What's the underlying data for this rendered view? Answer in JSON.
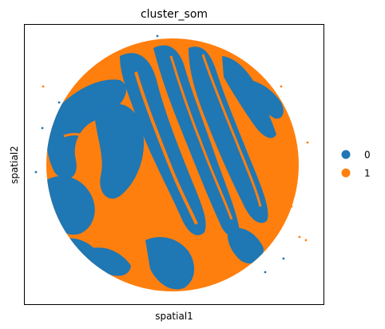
{
  "chart_data": {
    "type": "scatter",
    "title": "cluster_som",
    "xlabel": "spatial1",
    "ylabel": "spatial2",
    "xticks": [],
    "yticks": [],
    "grid": false,
    "legend_position": "right",
    "series": [
      {
        "name": "0",
        "color": "#1f77b4"
      },
      {
        "name": "1",
        "color": "#ff7f0e"
      }
    ],
    "regions": {
      "tissue_disk": {
        "cluster": "1"
      },
      "stripes": {
        "cluster": "0"
      }
    }
  }
}
